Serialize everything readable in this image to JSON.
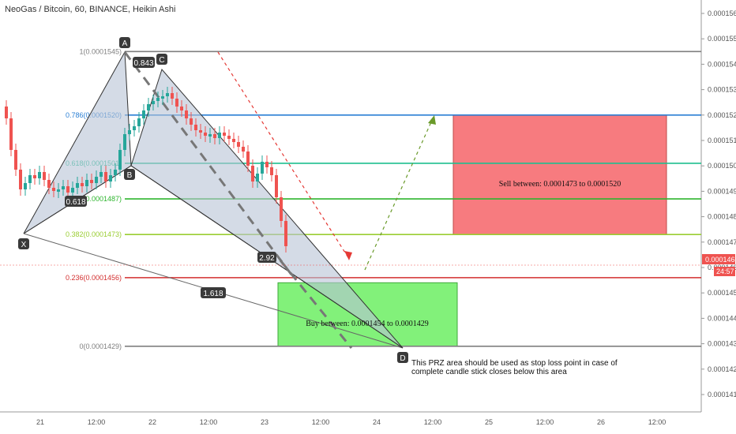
{
  "header": {
    "title": "NeoGas / Bitcoin, 60, BINANCE, Heikin Ashi"
  },
  "colors": {
    "up": "#26a69a",
    "down": "#ef5350",
    "pattern_fill": "#b7c3d6",
    "sell_zone": "#f77b7f",
    "buy_zone": "#74ef6c"
  },
  "chart_data": {
    "type": "candlestick",
    "yaxis": {
      "range": [
        0.00014,
        0.0001563
      ],
      "ticks": [
        "0.0001560",
        "0.0001550",
        "0.0001540",
        "0.0001530",
        "0.0001520",
        "0.0001510",
        "0.0001500",
        "0.0001490",
        "0.0001480",
        "0.0001470",
        "0.0001460",
        "0.0001450",
        "0.0001440",
        "0.0001430",
        "0.0001420",
        "0.0001410"
      ]
    },
    "xaxis": {
      "ticks": [
        "21",
        "12:00",
        "22",
        "12:00",
        "23",
        "12:00",
        "24",
        "12:00",
        "25",
        "12:00",
        "26",
        "12:00"
      ]
    },
    "current_price": {
      "value": "0.0001463",
      "countdown": "24:57"
    },
    "fib_levels": [
      {
        "label": "1(0.0001545)",
        "value": 0.0001545,
        "color": "#7f7f7f"
      },
      {
        "label": "0.786(0.0001520)",
        "value": 0.000152,
        "color": "#2a7fd4"
      },
      {
        "label": "0.618(0.0001501)",
        "value": 0.0001501,
        "color": "#1fbf8f"
      },
      {
        "label": "0.5(0.0001487)",
        "value": 0.0001487,
        "color": "#2fb52f"
      },
      {
        "label": "0.382(0.0001473)",
        "value": 0.0001473,
        "color": "#9acd32"
      },
      {
        "label": "0.236(0.0001456)",
        "value": 0.0001456,
        "color": "#d32f2f"
      },
      {
        "label": "0(0.0001429)",
        "value": 0.0001429,
        "color": "#7f7f7f"
      }
    ],
    "pattern_points": [
      {
        "label": "X"
      },
      {
        "label": "A"
      },
      {
        "label": "B"
      },
      {
        "label": "C"
      },
      {
        "label": "D"
      }
    ],
    "ratios": [
      "0.843",
      "0.618",
      "2.92",
      "1.618"
    ],
    "sell_zone": {
      "text": "Sell between: 0.0001473 to 0.0001520",
      "low": 0.0001473,
      "high": 0.000152
    },
    "buy_zone": {
      "text": "Buy between: 0.0001454 to 0.0001429",
      "low": 0.0001429,
      "high": 0.0001454
    },
    "annotation": "This PRZ area should be used as stop loss point in case of complete candle stick closes below this area"
  }
}
